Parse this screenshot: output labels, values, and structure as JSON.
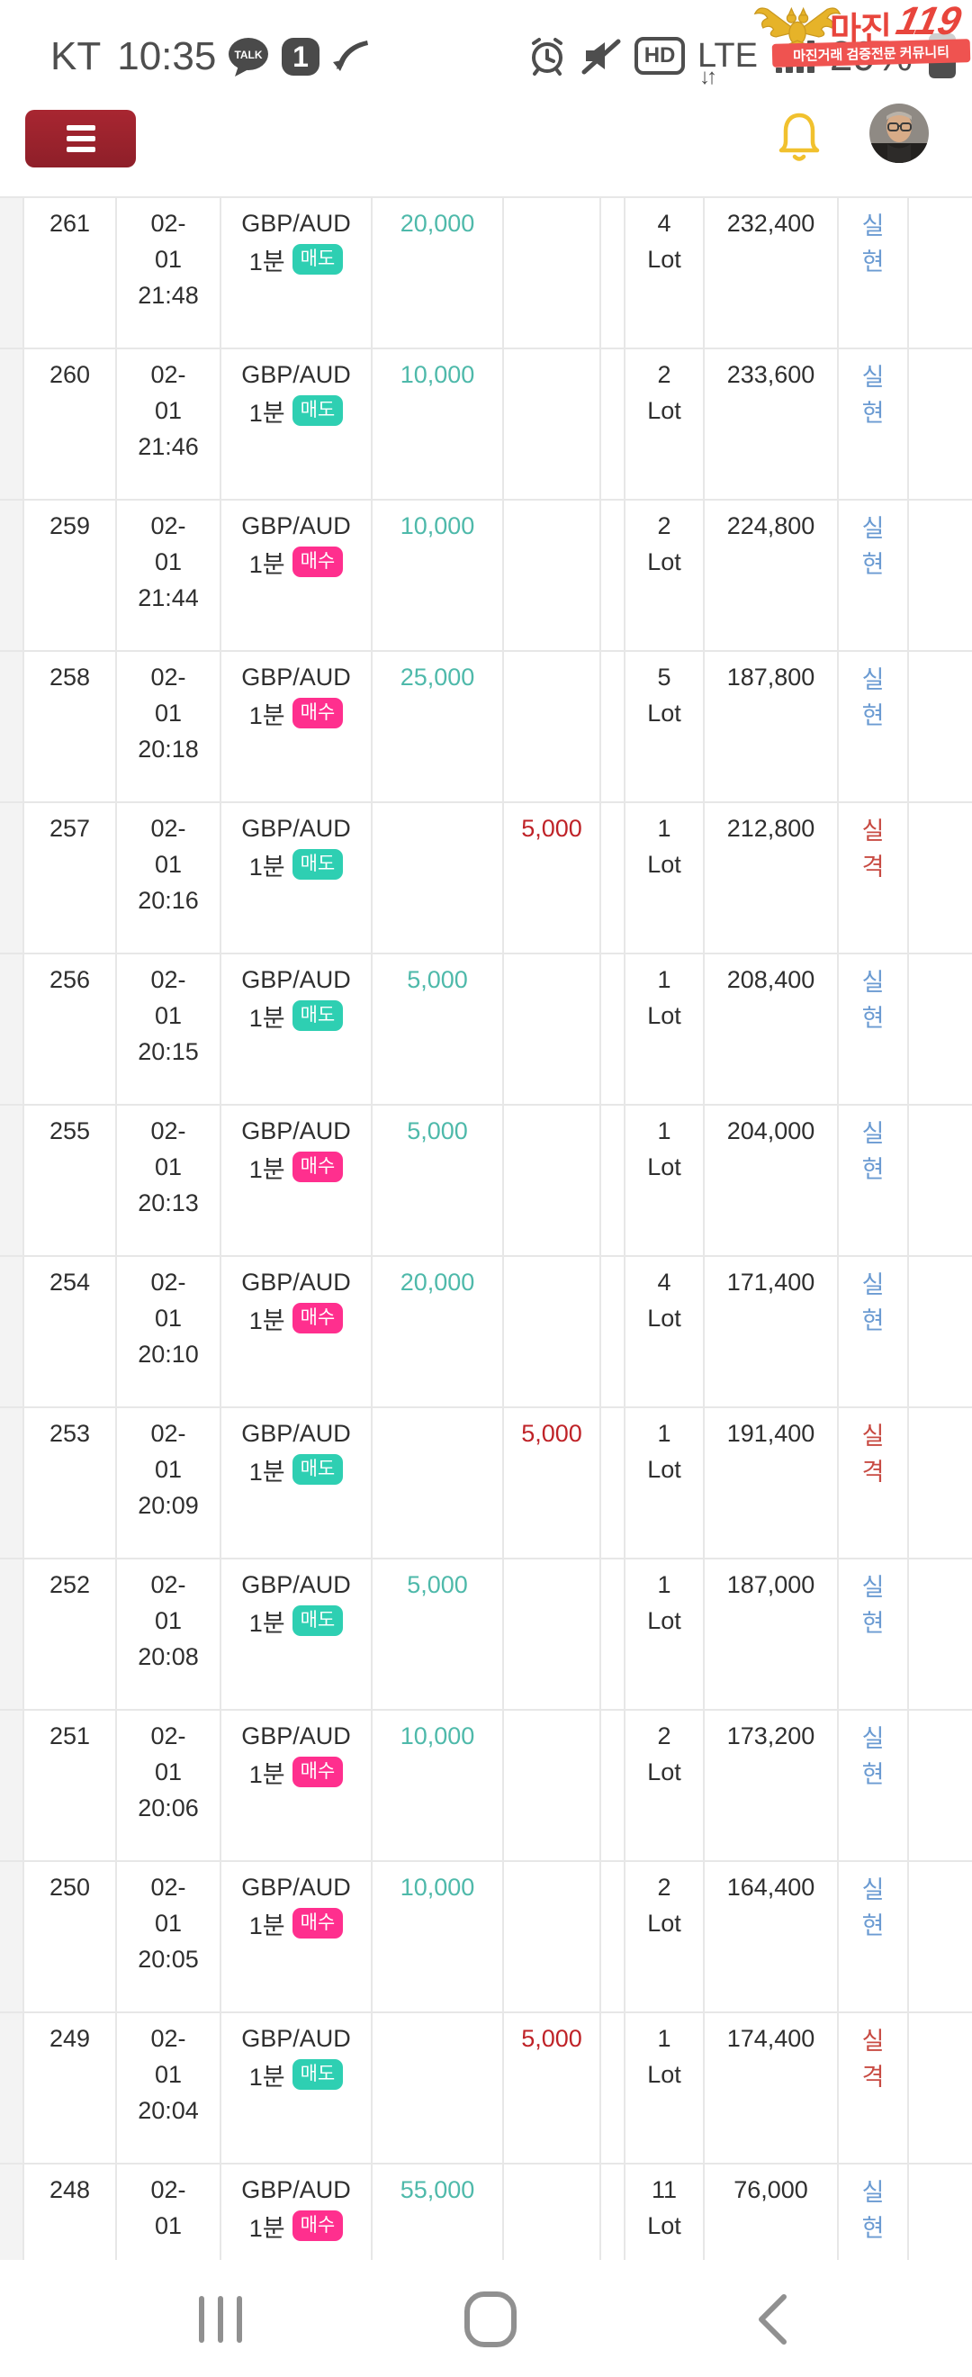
{
  "colors": {
    "sell_badge": "#2ecfb2",
    "buy_badge": "#ff2f8e",
    "profit_text": "#4eb9aa",
    "loss_text": "#bf2328",
    "status_realized": "#6b9bd2",
    "status_disqualified": "#c84b43",
    "menu_button": "#8e1f29",
    "bell": "#f1c12e",
    "border": "#e7e7e7",
    "text": "#2f2f2f",
    "statusbar": "#4e4e4e",
    "nav_icon": "#909090",
    "watermark_red": "#e8453c",
    "watermark_ribbon": "#ef5350",
    "watermark_gold": "#e6b329"
  },
  "status_bar": {
    "carrier": "KT",
    "time": "10:35",
    "talk_label": "TALK",
    "message_count": "1",
    "hd_label": "HD",
    "network_label": "LTE",
    "battery_percent": "29%"
  },
  "watermark": {
    "brand": "마진",
    "brand_number": "119",
    "ribbon_text": "마진거래 검증전문 커뮤니티"
  },
  "table": {
    "lot_unit": "Lot",
    "rows": [
      {
        "no": "261",
        "date": "02-01",
        "time": "21:48",
        "symbol": "GBP/AUD",
        "timeframe": "1분",
        "side": "매도",
        "side_type": "sell",
        "profit": "20,000",
        "loss": "",
        "lot": "4",
        "value": "232,400",
        "status": "실현",
        "status_type": "realized"
      },
      {
        "no": "260",
        "date": "02-01",
        "time": "21:46",
        "symbol": "GBP/AUD",
        "timeframe": "1분",
        "side": "매도",
        "side_type": "sell",
        "profit": "10,000",
        "loss": "",
        "lot": "2",
        "value": "233,600",
        "status": "실현",
        "status_type": "realized"
      },
      {
        "no": "259",
        "date": "02-01",
        "time": "21:44",
        "symbol": "GBP/AUD",
        "timeframe": "1분",
        "side": "매수",
        "side_type": "buy",
        "profit": "10,000",
        "loss": "",
        "lot": "2",
        "value": "224,800",
        "status": "실현",
        "status_type": "realized"
      },
      {
        "no": "258",
        "date": "02-01",
        "time": "20:18",
        "symbol": "GBP/AUD",
        "timeframe": "1분",
        "side": "매수",
        "side_type": "buy",
        "profit": "25,000",
        "loss": "",
        "lot": "5",
        "value": "187,800",
        "status": "실현",
        "status_type": "realized"
      },
      {
        "no": "257",
        "date": "02-01",
        "time": "20:16",
        "symbol": "GBP/AUD",
        "timeframe": "1분",
        "side": "매도",
        "side_type": "sell",
        "profit": "",
        "loss": "5,000",
        "lot": "1",
        "value": "212,800",
        "status": "실격",
        "status_type": "disqualified"
      },
      {
        "no": "256",
        "date": "02-01",
        "time": "20:15",
        "symbol": "GBP/AUD",
        "timeframe": "1분",
        "side": "매도",
        "side_type": "sell",
        "profit": "5,000",
        "loss": "",
        "lot": "1",
        "value": "208,400",
        "status": "실현",
        "status_type": "realized"
      },
      {
        "no": "255",
        "date": "02-01",
        "time": "20:13",
        "symbol": "GBP/AUD",
        "timeframe": "1분",
        "side": "매수",
        "side_type": "buy",
        "profit": "5,000",
        "loss": "",
        "lot": "1",
        "value": "204,000",
        "status": "실현",
        "status_type": "realized"
      },
      {
        "no": "254",
        "date": "02-01",
        "time": "20:10",
        "symbol": "GBP/AUD",
        "timeframe": "1분",
        "side": "매수",
        "side_type": "buy",
        "profit": "20,000",
        "loss": "",
        "lot": "4",
        "value": "171,400",
        "status": "실현",
        "status_type": "realized"
      },
      {
        "no": "253",
        "date": "02-01",
        "time": "20:09",
        "symbol": "GBP/AUD",
        "timeframe": "1분",
        "side": "매도",
        "side_type": "sell",
        "profit": "",
        "loss": "5,000",
        "lot": "1",
        "value": "191,400",
        "status": "실격",
        "status_type": "disqualified"
      },
      {
        "no": "252",
        "date": "02-01",
        "time": "20:08",
        "symbol": "GBP/AUD",
        "timeframe": "1분",
        "side": "매도",
        "side_type": "sell",
        "profit": "5,000",
        "loss": "",
        "lot": "1",
        "value": "187,000",
        "status": "실현",
        "status_type": "realized"
      },
      {
        "no": "251",
        "date": "02-01",
        "time": "20:06",
        "symbol": "GBP/AUD",
        "timeframe": "1분",
        "side": "매수",
        "side_type": "buy",
        "profit": "10,000",
        "loss": "",
        "lot": "2",
        "value": "173,200",
        "status": "실현",
        "status_type": "realized"
      },
      {
        "no": "250",
        "date": "02-01",
        "time": "20:05",
        "symbol": "GBP/AUD",
        "timeframe": "1분",
        "side": "매수",
        "side_type": "buy",
        "profit": "10,000",
        "loss": "",
        "lot": "2",
        "value": "164,400",
        "status": "실현",
        "status_type": "realized"
      },
      {
        "no": "249",
        "date": "02-01",
        "time": "20:04",
        "symbol": "GBP/AUD",
        "timeframe": "1분",
        "side": "매도",
        "side_type": "sell",
        "profit": "",
        "loss": "5,000",
        "lot": "1",
        "value": "174,400",
        "status": "실격",
        "status_type": "disqualified"
      },
      {
        "no": "248",
        "date": "02-01",
        "time": "",
        "symbol": "GBP/AUD",
        "timeframe": "1분",
        "side": "매수",
        "side_type": "buy",
        "profit": "55,000",
        "loss": "",
        "lot": "11",
        "value": "76,000",
        "status": "실현",
        "status_type": "realized"
      }
    ]
  },
  "nav_bar": {
    "buttons": [
      "recent-apps",
      "home",
      "back"
    ]
  }
}
